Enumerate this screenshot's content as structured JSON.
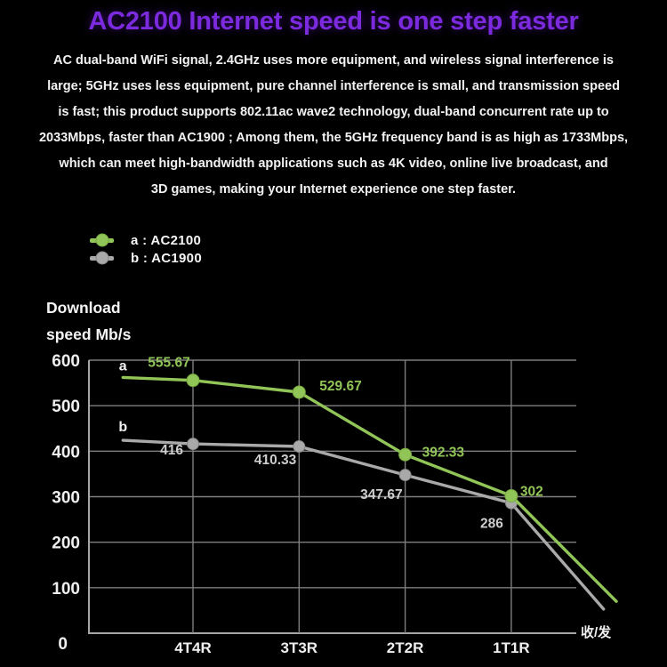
{
  "title": "AC2100 Internet speed is one step faster",
  "description_lines": [
    "AC dual-band WiFi signal, 2.4GHz uses more equipment, and wireless signal interference is",
    "large; 5GHz uses less equipment, pure channel interference is small, and transmission speed",
    "is fast; this product supports 802.11ac wave2 technology, dual-band concurrent rate up to",
    "2033Mbps, faster than AC1900 ; Among them, the 5GHz frequency band is as high as 1733Mbps,",
    "which can meet high-bandwidth applications such as 4K video, online live broadcast, and",
    "3D games, making your Internet experience one step faster."
  ],
  "legend": {
    "items": [
      {
        "letter": "a",
        "label": "a : AC2100",
        "color": "#92c558",
        "dot_stroke": "#76a83e"
      },
      {
        "letter": "b",
        "label": "b : AC1900",
        "color": "#a9a9a9",
        "dot_stroke": "#858585"
      }
    ]
  },
  "colors": {
    "background": "#000000",
    "title": "#7b2ade",
    "body_text": "#f2f2f2",
    "grid": "#7e7e7e",
    "axis": "#a6a6a6",
    "tick_text": "#efefef",
    "series_a": "#92c558",
    "series_b": "#a9a9a9",
    "label_a": "#92c558",
    "label_b": "#cdcdcd"
  },
  "chart_data": {
    "type": "line",
    "title": "",
    "ylabel": "Download speed Mb/s",
    "x_axis_unit_label": "收/发",
    "categories": [
      "4T4R",
      "3T3R",
      "2T2R",
      "1T1R"
    ],
    "ylim": [
      0,
      600
    ],
    "yticks": [
      600,
      500,
      400,
      300,
      200,
      100,
      0
    ],
    "grid": true,
    "legend_position": "top-left",
    "series": [
      {
        "name": "a : AC2100",
        "letter": "a",
        "color": "#92c558",
        "marker_stroke": "#76a83e",
        "marker_radius": 7,
        "values": [
          555.67,
          529.67,
          392.33,
          302
        ],
        "point_labels": [
          "555.67",
          "529.67",
          "392.33",
          "302"
        ],
        "lead_in": {
          "dx": -0.66,
          "value": 562
        },
        "tail": {
          "dx": 0.99,
          "value": 70
        }
      },
      {
        "name": "b : AC1900",
        "letter": "b",
        "color": "#a9a9a9",
        "marker_stroke": "#858585",
        "marker_radius": 6.5,
        "values": [
          416,
          410.33,
          347.67,
          286
        ],
        "point_labels": [
          "416",
          "410.33",
          "347.67",
          "286"
        ],
        "lead_in": {
          "dx": -0.66,
          "value": 424
        },
        "tail": {
          "dx": 0.87,
          "value": 53
        }
      }
    ]
  }
}
